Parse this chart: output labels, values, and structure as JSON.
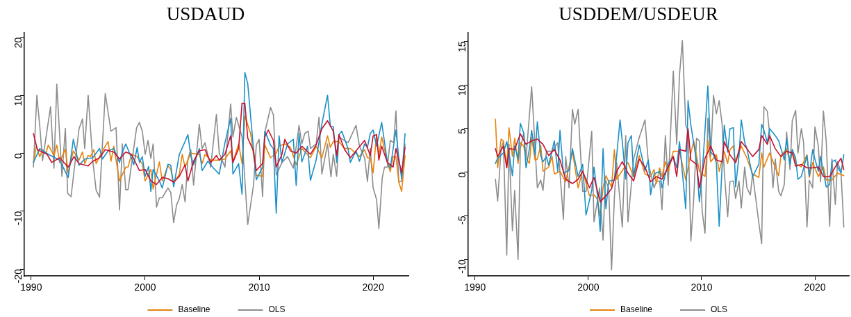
{
  "chart_data": [
    {
      "type": "line",
      "title": "USDAUD",
      "xlim": [
        1989.4,
        2023.1
      ],
      "xticks": [
        1990,
        2000,
        2010,
        2020
      ],
      "ylim": [
        -21.2,
        20.8
      ],
      "yticks": [
        -20,
        -10,
        0,
        10,
        20
      ],
      "grid": false,
      "legend": "bottom",
      "marker": "none",
      "line_style": "solid",
      "series": [
        {
          "color": "#c8102e",
          "x": [
            1990.2,
            1990.55,
            1991.4,
            1991.8,
            1992.5,
            1993.25,
            1993.75,
            1994.2,
            1995,
            1995.4,
            1996,
            1996.5,
            1997.25,
            1997.75,
            1998.3,
            1998.8,
            1999.5,
            2000,
            2000.5,
            2001,
            2001.5,
            2002,
            2002.5,
            2003,
            2003.5,
            2003.75,
            2004.25,
            2004.75,
            2005.25,
            2005.75,
            2006.25,
            2006.5,
            2007,
            2007.5,
            2007.7,
            2008.2,
            2008.5,
            2008.75,
            2009,
            2009.5,
            2009.75,
            2010.3,
            2010.5,
            2010.8,
            2011.25,
            2011.5,
            2012,
            2012.25,
            2012.75,
            2013.25,
            2013.75,
            2014.5,
            2015,
            2015.5,
            2016,
            2016.5,
            2016.8,
            2017,
            2017.5,
            2018,
            2018.5,
            2019.25,
            2019.75,
            2020,
            2020.3,
            2020.5,
            2020.75,
            2021.25,
            2021.75,
            2022,
            2022.5,
            2022.8
          ],
          "values": [
            3.4,
            0.6,
            -0.2,
            -1.6,
            -0.8,
            -2.4,
            -0.6,
            -1.8,
            -2.2,
            -1.4,
            -0.8,
            0.6,
            0.2,
            -1,
            0.2,
            -0.2,
            -3,
            -2.8,
            -4.8,
            -5.4,
            -4.2,
            -4.4,
            -5,
            -4,
            -2,
            -4.8,
            -1.4,
            0.4,
            0.6,
            -1.6,
            -0.4,
            -1.2,
            -0.2,
            3,
            -1.6,
            0.8,
            8.6,
            8.6,
            2.6,
            0.4,
            -3,
            -1.8,
            2.8,
            4,
            2.2,
            -2.4,
            -0.2,
            2.4,
            0.4,
            0,
            1.2,
            -0.2,
            1.4,
            4.2,
            5.6,
            3.8,
            -0.4,
            3.2,
            0.6,
            -0.8,
            0.4,
            2.2,
            -0.4,
            3,
            3.2,
            -1.2,
            1.2,
            -1.6,
            -2.4,
            0.8,
            -3.4,
            1
          ]
        },
        {
          "color": "#1a90c8",
          "x": [
            1990.2,
            1990.75,
            1991.5,
            1992.5,
            1993.25,
            1993.7,
            1994.2,
            1994.7,
            1995.4,
            1996,
            1996.25,
            1996.75,
            1997.25,
            1997.75,
            1998,
            1998.3,
            1998.8,
            1999,
            1999.3,
            1999.5,
            1999.75,
            2000,
            2000.3,
            2000.5,
            2000.7,
            2001.25,
            2001.5,
            2001.75,
            2002,
            2002.25,
            2002.5,
            2003,
            2003.5,
            2003.75,
            2004,
            2004.25,
            2004.75,
            2005,
            2005.5,
            2006,
            2006.5,
            2007,
            2007.5,
            2007.7,
            2008.2,
            2008.5,
            2008.75,
            2009,
            2009.5,
            2009.75,
            2010.3,
            2010.5,
            2011,
            2011.25,
            2011.5,
            2011.75,
            2012,
            2012.5,
            2013,
            2013.25,
            2013.5,
            2013.75,
            2014.25,
            2014.5,
            2015,
            2015.5,
            2016,
            2016.25,
            2016.5,
            2016.8,
            2017,
            2017.25,
            2017.8,
            2018,
            2018.5,
            2018.8,
            2019.25,
            2019.5,
            2019.75,
            2020,
            2020.3,
            2020.75,
            2021.25,
            2021.5,
            2022,
            2022.25,
            2022.5,
            2022.8
          ],
          "values": [
            -1.6,
            0.8,
            -0.2,
            -1.2,
            -4.2,
            2.4,
            -2.1,
            -1,
            -0.8,
            0.8,
            -1,
            0.4,
            0.8,
            -1.6,
            0.2,
            1.6,
            -0.8,
            -2,
            1,
            -1.6,
            -0.6,
            -4,
            -2.3,
            -6.6,
            -2.8,
            -4.8,
            -6,
            -4,
            -1.9,
            -2.1,
            -5.8,
            -0.2,
            2,
            3.2,
            -0.4,
            -2,
            0.8,
            -3,
            -1.4,
            -2.6,
            -3.6,
            1.8,
            6,
            -3.6,
            -1.8,
            -7.1,
            13.9,
            12,
            0.8,
            -4.6,
            -2.4,
            3.8,
            1.4,
            0.8,
            -10.4,
            3,
            -1.6,
            1.6,
            2.4,
            -5.6,
            3.4,
            -1.5,
            1.2,
            -4.7,
            -1.2,
            5,
            10,
            4.6,
            4.6,
            -1.6,
            3.2,
            3.8,
            0.8,
            -1.6,
            0.4,
            -1.4,
            1.6,
            1,
            3.4,
            4,
            1.2,
            5.3,
            -1.6,
            -2.6,
            4,
            -0.8,
            -4.4,
            3.4
          ]
        },
        {
          "name": "Baseline",
          "color": "#e8820c",
          "x": [
            1990.2,
            1990.45,
            1990.75,
            1991,
            1991.3,
            1991.5,
            1992,
            1992.25,
            1992.5,
            1993,
            1993.25,
            1993.7,
            1994.2,
            1994.5,
            1994.7,
            1995,
            1995.2,
            1995.5,
            1995.7,
            1996.25,
            1996.75,
            1997,
            1997.25,
            1997.75,
            1998.3,
            1998.5,
            1998.8,
            1999.3,
            1999.75,
            2000,
            2000.5,
            2000.7,
            2001.25,
            2001.5,
            2002,
            2002.25,
            2002.5,
            2003,
            2003.25,
            2003.5,
            2004,
            2004.75,
            2005,
            2005.25,
            2005.75,
            2006.5,
            2007,
            2007.5,
            2007.7,
            2008.2,
            2008.5,
            2008.75,
            2009.25,
            2009.75,
            2010.3,
            2010.5,
            2011,
            2011.5,
            2011.75,
            2012.25,
            2012.75,
            2013.25,
            2013.75,
            2014.5,
            2015,
            2015.5,
            2016,
            2016.25,
            2016.5,
            2017,
            2017.5,
            2018,
            2018.8,
            2019.25,
            2019.5,
            2019.75,
            2020,
            2020.3,
            2020.5,
            2020.75,
            2021.25,
            2021.5,
            2021.75,
            2022,
            2022.25,
            2022.5,
            2022.8
          ],
          "values": [
            -1.6,
            1.2,
            -0.6,
            0.6,
            0,
            1.4,
            -0.4,
            1.4,
            -1.6,
            0.7,
            -3.4,
            0.4,
            -1.2,
            0.2,
            -1.8,
            -0.4,
            -0.6,
            0.6,
            -1.8,
            0.4,
            2,
            -1.4,
            1.2,
            -4.8,
            -2.4,
            -2.4,
            -0.2,
            -0.6,
            -1.9,
            -4.8,
            -2.8,
            -6.2,
            -1.5,
            -4.8,
            -2.2,
            -2.8,
            -5.2,
            -3.6,
            -0.2,
            -2.4,
            0,
            -0.2,
            -1.8,
            -0.2,
            -1.2,
            -1.2,
            -1,
            0.4,
            -1.6,
            1.6,
            -1.8,
            6.4,
            3.4,
            -3.8,
            -4,
            1.4,
            -0.8,
            0,
            1.2,
            1.6,
            1,
            -2,
            0.8,
            -0.8,
            1.2,
            -0.8,
            3,
            1,
            2,
            2,
            0.8,
            0.8,
            -0.6,
            0.6,
            -0.8,
            -0.8,
            -3.4,
            3.2,
            -0.4,
            2.8,
            -1.6,
            -3.2,
            -0.6,
            -0.6,
            -5,
            -6.6,
            -0.4
          ]
        },
        {
          "name": "OLS",
          "color": "#8c8c8c",
          "x": [
            1990.2,
            1990.5,
            1990.75,
            1991,
            1991.7,
            1992,
            1992.25,
            1992.7,
            1993,
            1993.2,
            1993.5,
            1994.2,
            1994.5,
            1994.7,
            1995,
            1995.4,
            1995.7,
            1996,
            1996.5,
            1997,
            1997.45,
            1997.75,
            1998,
            1998.3,
            1998.5,
            1999.25,
            1999.5,
            1999.75,
            2000,
            2000.25,
            2000.5,
            2000.7,
            2001,
            2001.25,
            2001.5,
            2002,
            2002.25,
            2002.5,
            2002.75,
            2003,
            2003.25,
            2003.5,
            2003.75,
            2004,
            2004.25,
            2004.75,
            2005,
            2005.25,
            2005.75,
            2006.25,
            2006.5,
            2007,
            2007.5,
            2007.7,
            2008,
            2008.5,
            2009,
            2009.5,
            2009.75,
            2010,
            2010.3,
            2010.5,
            2011,
            2011.25,
            2011.5,
            2012,
            2012.5,
            2013,
            2013.5,
            2013.75,
            2014,
            2014.3,
            2014.5,
            2015,
            2015.25,
            2015.5,
            2016,
            2016.3,
            2016.5,
            2016.8,
            2017,
            2017.8,
            2018.5,
            2018.8,
            2019.25,
            2019.5,
            2019.75,
            2020,
            2020.3,
            2020.5,
            2020.8,
            2021,
            2021.25,
            2021.5,
            2021.8,
            2022,
            2022.25,
            2022.5,
            2022.8
          ],
          "values": [
            -2.4,
            10,
            4.8,
            -1.3,
            8,
            -2.6,
            11.9,
            -4,
            4.3,
            -6.9,
            -7.5,
            4.2,
            5.9,
            0.8,
            10,
            -1.2,
            -6.4,
            -7.6,
            10.3,
            3.8,
            4.4,
            -9.8,
            1.6,
            -6.3,
            -6.3,
            4.4,
            5.3,
            3.8,
            -0.2,
            2.2,
            -0.9,
            1.6,
            -9.3,
            -7.7,
            -7.7,
            -6,
            -6.8,
            -12,
            -9,
            -7.8,
            -5.4,
            -8.4,
            -1.1,
            0.6,
            -5.5,
            5,
            0.8,
            1.8,
            -2.4,
            6.7,
            0,
            -2.4,
            8.5,
            2.8,
            6.2,
            2.8,
            -12.3,
            -5.6,
            1.4,
            2.4,
            -7.5,
            3.6,
            7.9,
            6.6,
            -3.8,
            -1.6,
            -0.6,
            -2.6,
            4.8,
            1.6,
            3.4,
            3.8,
            0.8,
            1.6,
            6.2,
            -3.6,
            1.6,
            -4.1,
            -0.2,
            -4,
            2.8,
            1.8,
            4.8,
            1.2,
            -0.8,
            -4.9,
            0.8,
            -6,
            -8,
            -13,
            -4.2,
            -2.4,
            -2.4,
            2.2,
            1.8,
            7.3,
            -5,
            -4.8,
            1.6
          ]
        }
      ]
    },
    {
      "type": "line",
      "title": "USDDEM/USDEUR",
      "xlim": [
        1989.4,
        2023
      ],
      "xticks": [
        1990,
        2000,
        2010,
        2020
      ],
      "ylim": [
        -11.9,
        16
      ],
      "yticks": [
        -10,
        -5,
        0,
        5,
        10,
        15
      ],
      "grid": false,
      "legend": "bottom",
      "marker": "none",
      "line_style": "solid",
      "series": [
        {
          "color": "#c8102e",
          "x": [
            1991.8,
            1992,
            1992.5,
            1992.8,
            1993,
            1993.5,
            1994,
            1994.5,
            1995,
            1995.5,
            1996,
            1996.5,
            1997,
            1997.5,
            1998,
            1998.6,
            1999.1,
            1999.5,
            2000.1,
            2000.5,
            2001.05,
            2001.55,
            2002.05,
            2002.5,
            2003,
            2003.5,
            2004,
            2004.5,
            2005,
            2005.5,
            2006,
            2006.5,
            2007.05,
            2007.5,
            2007.8,
            2008.05,
            2008.6,
            2008.8,
            2009.05,
            2009.55,
            2009.8,
            2010.3,
            2010.8,
            2011.3,
            2011.8,
            2012,
            2012.5,
            2013,
            2013.5,
            2014,
            2014.5,
            2015.05,
            2015.3,
            2015.8,
            2016,
            2016.5,
            2017,
            2017.5,
            2018,
            2018.3,
            2018.8,
            2019.3,
            2019.8,
            2020.3,
            2020.75,
            2021.3,
            2021.8,
            2022.3,
            2022.55
          ],
          "values": [
            2.7,
            1.8,
            3,
            0.5,
            2.7,
            2.6,
            4.4,
            3.2,
            3.6,
            3.8,
            3.2,
            1.9,
            2.6,
            1.4,
            -0.8,
            -1.3,
            -0.8,
            0.1,
            -1.8,
            -0.6,
            -3.4,
            -2.7,
            -1.9,
            0.1,
            1.2,
            -0.1,
            -1,
            1.5,
            0.6,
            -1.1,
            -0.5,
            -0.8,
            0.6,
            1.8,
            -0.5,
            2.6,
            2.4,
            5,
            1.4,
            0.9,
            -1.8,
            1.6,
            3,
            1.4,
            1.2,
            3.5,
            2,
            1.1,
            3.5,
            2.7,
            1.8,
            2.6,
            4.2,
            3.2,
            4.2,
            2.7,
            1.8,
            2.4,
            2.2,
            0.7,
            0.9,
            0.5,
            0.5,
            0.6,
            -0.5,
            -0.5,
            0.6,
            1.6,
            0.3
          ]
        },
        {
          "color": "#1a90c8",
          "x": [
            1991.8,
            1992,
            1992.5,
            1992.8,
            1993,
            1993.3,
            1993.5,
            1993.8,
            1994,
            1994.3,
            1994.5,
            1994.8,
            1995,
            1995.3,
            1995.5,
            1995.8,
            1996,
            1996.3,
            1996.5,
            1997,
            1997.3,
            1997.5,
            1997.8,
            1998.3,
            1998.6,
            1999.1,
            1999.5,
            1999.8,
            2000.3,
            2000.5,
            2000.8,
            2001.05,
            2001.3,
            2001.55,
            2001.8,
            2002.3,
            2002.8,
            2003,
            2003.3,
            2003.5,
            2003.8,
            2004,
            2004.3,
            2004.5,
            2005,
            2005.3,
            2005.5,
            2005.8,
            2006.3,
            2006.5,
            2007.05,
            2007.5,
            2007.8,
            2008.05,
            2008.6,
            2008.8,
            2009.05,
            2009.55,
            2009.8,
            2010.05,
            2010.55,
            2010.8,
            2011.05,
            2011.3,
            2011.55,
            2011.8,
            2012,
            2012.3,
            2012.5,
            2012.8,
            2013,
            2013.3,
            2013.5,
            2013.8,
            2014,
            2014.5,
            2015.05,
            2015.3,
            2015.5,
            2015.8,
            2016,
            2016.5,
            2016.8,
            2017.3,
            2017.5,
            2017.8,
            2018,
            2018.3,
            2018.5,
            2018.8,
            2019.3,
            2019.5,
            2019.8,
            2020,
            2020.3,
            2020.5,
            2021,
            2021.3,
            2021.5,
            2021.8,
            2022,
            2022.3,
            2022.55
          ],
          "values": [
            1,
            1.6,
            2.2,
            3.5,
            2.2,
            -0.4,
            3,
            1.5,
            5.6,
            4.5,
            0.5,
            2.7,
            4.8,
            2,
            5.8,
            1.9,
            1.2,
            1.8,
            0.8,
            3.6,
            0.1,
            4.8,
            -0.1,
            0.2,
            2.7,
            -0.5,
            0.9,
            -4.9,
            -2.1,
            0.6,
            -2.6,
            -6.8,
            2.7,
            -4.2,
            -1,
            -0.9,
            6,
            3.5,
            -0.8,
            3.4,
            4.2,
            -0.5,
            1.8,
            3.1,
            0.2,
            1.4,
            -2.6,
            -0.2,
            0.1,
            -1.8,
            1,
            1.8,
            0.5,
            3.5,
            -4.2,
            8.2,
            5.4,
            1.2,
            -3.4,
            -0.2,
            9.9,
            2.3,
            2,
            1.1,
            -6.2,
            0.5,
            5.4,
            2.3,
            5,
            5.1,
            -1.7,
            1.9,
            6,
            3.4,
            2.7,
            -0.5,
            0.9,
            5.5,
            4.8,
            3.4,
            5,
            4.2,
            3.6,
            1.4,
            3.8,
            0.9,
            2.6,
            1.6,
            -0.8,
            -0.5,
            1.9,
            -0.4,
            2.6,
            1.5,
            0.1,
            1.8,
            -1.7,
            -1.4,
            1.2,
            1.4,
            0.6,
            -0.1,
            2
          ]
        },
        {
          "name": "Baseline",
          "color": "#e8820c",
          "x": [
            1991.8,
            1992,
            1992.3,
            1992.5,
            1992.8,
            1993,
            1993.3,
            1993.5,
            1993.8,
            1994,
            1994.3,
            1994.5,
            1994.8,
            1995,
            1995.3,
            1995.5,
            1995.8,
            1996,
            1996.5,
            1996.8,
            1997,
            1997.5,
            1998,
            1998.6,
            1999.1,
            1999.5,
            2000.1,
            2000.5,
            2000.8,
            2001.05,
            2001.3,
            2001.55,
            2002.05,
            2002.3,
            2002.5,
            2003,
            2003.5,
            2004,
            2004.5,
            2005,
            2005.5,
            2005.8,
            2006,
            2006.3,
            2006.5,
            2006.8,
            2007.05,
            2007.5,
            2008.05,
            2008.6,
            2009.05,
            2009.3,
            2009.8,
            2010.3,
            2010.55,
            2010.8,
            2011.3,
            2011.55,
            2012,
            2012.3,
            2012.5,
            2012.8,
            2013,
            2013.5,
            2014,
            2014.5,
            2015.05,
            2015.3,
            2015.5,
            2016,
            2016.3,
            2016.8,
            2017,
            2017.5,
            2017.8,
            2018,
            2018.3,
            2018.8,
            2019.3,
            2019.5,
            2019.8,
            2020.3,
            2020.75,
            2021,
            2021.5,
            2022,
            2022.55
          ],
          "values": [
            6.1,
            0.5,
            3.8,
            3.6,
            0.5,
            5.1,
            1.8,
            3.9,
            1,
            3.4,
            3,
            1.6,
            1,
            4,
            1.4,
            1.5,
            3.1,
            0.1,
            0.6,
            1.8,
            -0.2,
            0.1,
            -1.1,
            2.4,
            -1.8,
            0.2,
            -2.7,
            -2.6,
            -3.1,
            -5,
            -1.8,
            -0.4,
            -1.7,
            2.6,
            -0.8,
            0.2,
            1.1,
            -0.5,
            1.9,
            -0.2,
            -0.5,
            0.3,
            -1.3,
            0.5,
            -0.5,
            1.2,
            0.1,
            2.4,
            2.4,
            -0.9,
            2.2,
            3.6,
            0.1,
            -0.5,
            3.6,
            1.2,
            2,
            0.1,
            2.4,
            1,
            2.6,
            3,
            1.1,
            3,
            1.6,
            -0.2,
            -0.6,
            2.2,
            0.6,
            2.2,
            1.2,
            -0.4,
            1.9,
            2.7,
            1.1,
            2.6,
            1,
            0.6,
            2,
            -0.6,
            1.1,
            -0.5,
            0.6,
            -0.9,
            -0.9,
            -0.1,
            -0.4
          ]
        },
        {
          "name": "OLS",
          "color": "#8c8c8c",
          "x": [
            1991.8,
            1992,
            1992.3,
            1992.5,
            1992.8,
            1993,
            1993.3,
            1993.5,
            1993.8,
            1994,
            1994.3,
            1994.5,
            1995,
            1995.5,
            1995.8,
            1996,
            1996.3,
            1996.8,
            1997.3,
            1997.8,
            1998,
            1998.3,
            1998.6,
            1998.8,
            1999.1,
            1999.5,
            1999.8,
            2000.3,
            2000.5,
            2000.8,
            2001,
            2001.3,
            2001.5,
            2001.8,
            2002.05,
            2002.3,
            2002.5,
            2003,
            2003.3,
            2003.5,
            2004,
            2004.5,
            2005,
            2005.3,
            2005.8,
            2006,
            2006.3,
            2006.5,
            2006.8,
            2007.05,
            2007.5,
            2007.8,
            2008.05,
            2008.3,
            2008.6,
            2008.8,
            2009.05,
            2009.3,
            2009.55,
            2009.8,
            2010.05,
            2010.3,
            2010.55,
            2010.8,
            2011.05,
            2011.3,
            2011.55,
            2011.8,
            2012,
            2012.3,
            2012.5,
            2012.8,
            2013,
            2013.3,
            2013.5,
            2013.8,
            2014,
            2014.3,
            2014.5,
            2015.05,
            2015.3,
            2015.5,
            2015.8,
            2016,
            2016.3,
            2016.5,
            2016.8,
            2017,
            2017.3,
            2017.5,
            2017.8,
            2018,
            2018.3,
            2018.5,
            2018.8,
            2019,
            2019.3,
            2019.5,
            2019.8,
            2020,
            2020.3,
            2020.5,
            2020.75,
            2021,
            2021.3,
            2021.5,
            2021.8,
            2022,
            2022.3,
            2022.55
          ],
          "values": [
            -0.8,
            -3.3,
            2.7,
            3.5,
            -9.5,
            3.2,
            -6.7,
            -2.1,
            -10,
            2.7,
            4.5,
            1.6,
            9.8,
            -1.8,
            -0.9,
            -2.1,
            2.4,
            2.4,
            3.4,
            -5.4,
            1.8,
            -1.8,
            7.2,
            5.5,
            7.2,
            -2.2,
            -2.2,
            4.7,
            -5.7,
            -3.3,
            -1.8,
            -7.8,
            -0.8,
            -1.9,
            -11.2,
            -2.9,
            1.1,
            -6.3,
            4.2,
            -5.7,
            1.5,
            4,
            6,
            1,
            -1.8,
            -1.1,
            -1,
            -4.3,
            4.2,
            -1.5,
            11.6,
            3.2,
            11.2,
            15.1,
            5.4,
            4.8,
            -7.9,
            -3.1,
            3.9,
            3.6,
            -4.5,
            -7,
            6.2,
            1.8,
            8.8,
            6.7,
            8.2,
            5.6,
            0,
            -5.1,
            -1.1,
            -1,
            -3,
            -1,
            -4.1,
            0.6,
            -1.8,
            -2.6,
            -0.2,
            -5.8,
            -8.2,
            7.5,
            7,
            4.4,
            -1.8,
            1.5,
            -2.2,
            -2.7,
            -1.4,
            4.6,
            0.3,
            5.9,
            7.1,
            2.2,
            5,
            3.4,
            -6.3,
            -0.9,
            -1.8,
            5.2,
            3,
            -1.1,
            7,
            3.5,
            -6.2,
            1.5,
            -3.7,
            1.2,
            0,
            -6.3
          ]
        }
      ]
    }
  ]
}
